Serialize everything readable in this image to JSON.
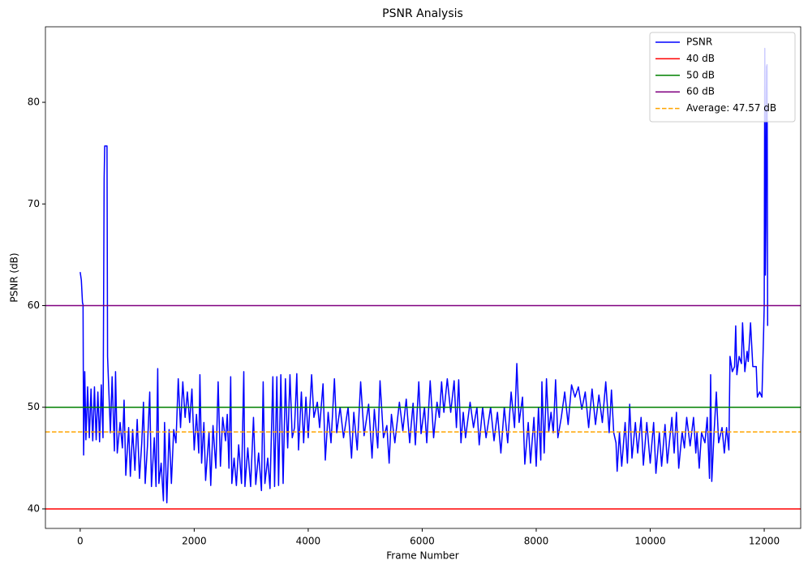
{
  "chart_data": {
    "type": "line",
    "title": "PSNR Analysis",
    "x_label": "Frame Number",
    "y_label": "PSNR (dB)",
    "xlim": [
      -610,
      12640
    ],
    "ylim": [
      38.08,
      87.43
    ],
    "xticks": [
      0,
      2000,
      4000,
      6000,
      8000,
      10000,
      12000
    ],
    "yticks": [
      40,
      50,
      60,
      70,
      80
    ],
    "legend": "upper right",
    "series": [
      {
        "name": "PSNR",
        "color": "#0000ff",
        "x": [
          0,
          20,
          40,
          50,
          60,
          80,
          100,
          130,
          160,
          190,
          220,
          250,
          280,
          310,
          340,
          370,
          400,
          420,
          430,
          470,
          480,
          500,
          530,
          560,
          600,
          620,
          650,
          700,
          740,
          770,
          800,
          850,
          880,
          920,
          960,
          1000,
          1040,
          1080,
          1110,
          1140,
          1180,
          1220,
          1250,
          1300,
          1330,
          1360,
          1380,
          1420,
          1460,
          1480,
          1520,
          1560,
          1600,
          1640,
          1680,
          1720,
          1760,
          1800,
          1840,
          1880,
          1920,
          1960,
          2000,
          2040,
          2080,
          2100,
          2130,
          2170,
          2200,
          2260,
          2290,
          2330,
          2380,
          2420,
          2460,
          2500,
          2550,
          2580,
          2610,
          2640,
          2660,
          2700,
          2740,
          2780,
          2830,
          2870,
          2890,
          2940,
          2990,
          3040,
          3080,
          3130,
          3180,
          3210,
          3240,
          3290,
          3330,
          3380,
          3410,
          3450,
          3480,
          3520,
          3560,
          3600,
          3640,
          3680,
          3720,
          3760,
          3800,
          3830,
          3880,
          3920,
          3960,
          4000,
          4060,
          4100,
          4160,
          4200,
          4260,
          4300,
          4350,
          4400,
          4460,
          4500,
          4560,
          4620,
          4700,
          4760,
          4800,
          4860,
          4920,
          4980,
          5060,
          5120,
          5160,
          5220,
          5260,
          5320,
          5380,
          5420,
          5460,
          5520,
          5600,
          5660,
          5720,
          5780,
          5840,
          5880,
          5940,
          5980,
          6040,
          6080,
          6140,
          6200,
          6260,
          6300,
          6340,
          6380,
          6440,
          6500,
          6560,
          6600,
          6640,
          6680,
          6720,
          6760,
          6840,
          6900,
          6960,
          7000,
          7060,
          7120,
          7200,
          7260,
          7320,
          7380,
          7440,
          7500,
          7560,
          7620,
          7660,
          7700,
          7760,
          7800,
          7860,
          7900,
          7960,
          8000,
          8040,
          8080,
          8100,
          8140,
          8180,
          8220,
          8260,
          8300,
          8340,
          8380,
          8440,
          8500,
          8560,
          8620,
          8680,
          8740,
          8800,
          8860,
          8920,
          8980,
          9040,
          9100,
          9160,
          9220,
          9280,
          9320,
          9360,
          9400,
          9420,
          9460,
          9500,
          9560,
          9600,
          9640,
          9680,
          9740,
          9780,
          9840,
          9880,
          9940,
          10000,
          10060,
          10100,
          10160,
          10200,
          10260,
          10300,
          10380,
          10420,
          10460,
          10500,
          10560,
          10600,
          10640,
          10700,
          10760,
          10800,
          10820,
          10860,
          10900,
          10960,
          11000,
          11040,
          11060,
          11080,
          11120,
          11160,
          11200,
          11260,
          11300,
          11340,
          11380,
          11400,
          11440,
          11480,
          11500,
          11520,
          11560,
          11600,
          11620,
          11660,
          11700,
          11720,
          11760,
          11800,
          11860,
          11880,
          11920,
          11960,
          11990,
          12000,
          12010,
          12020,
          12030,
          12040,
          12050,
          12060
        ],
        "values": [
          63.3,
          62.5,
          60.3,
          60.1,
          45.3,
          53.5,
          46.8,
          52,
          47,
          51.8,
          46.7,
          52,
          46.8,
          51.5,
          46.6,
          52.2,
          47,
          72.5,
          75.7,
          75.7,
          55,
          52,
          47.5,
          53,
          45.7,
          53.5,
          45.5,
          48.5,
          46,
          50.7,
          43.3,
          48,
          43.2,
          47.8,
          43.8,
          48.8,
          43,
          46.5,
          50.5,
          42.5,
          46.2,
          51.5,
          42.2,
          47,
          42.2,
          53.8,
          42.5,
          44.5,
          40.8,
          48.5,
          40.6,
          47.8,
          42.5,
          47.8,
          46.5,
          52.8,
          48,
          52.5,
          49,
          51.5,
          48.5,
          51.8,
          45.8,
          49.3,
          45.5,
          53.2,
          44.5,
          48.5,
          42.8,
          47.5,
          42.3,
          48.2,
          44,
          52.5,
          44.2,
          49,
          46.7,
          49.3,
          44,
          53,
          42.5,
          45,
          42.3,
          46.3,
          42.5,
          53.5,
          42.2,
          46,
          42.2,
          49,
          42.4,
          45.5,
          41.8,
          52.5,
          42.5,
          45,
          42,
          53,
          42.2,
          53,
          42.3,
          53.2,
          42.5,
          52.8,
          46,
          53.2,
          47,
          48,
          53.3,
          45.8,
          51.5,
          46.5,
          51,
          47,
          53.2,
          49,
          50.5,
          48,
          52.3,
          44.8,
          49.5,
          46.5,
          52.8,
          47.5,
          50,
          47,
          50,
          45,
          49.5,
          45.8,
          52.5,
          47.2,
          50.3,
          45,
          49.8,
          46,
          52.6,
          47,
          48.2,
          44.5,
          49.3,
          46.5,
          50.5,
          47.7,
          50.8,
          46.5,
          50.4,
          46.3,
          52.5,
          47.4,
          50,
          46.5,
          52.6,
          47,
          50.5,
          49,
          52.5,
          49.5,
          52.8,
          49.5,
          52.6,
          48,
          52.7,
          46.5,
          49.5,
          47,
          50.5,
          48,
          50,
          46.3,
          50,
          47,
          50,
          46.7,
          49.5,
          45.5,
          50,
          46.5,
          51.5,
          48,
          54.3,
          48.5,
          51,
          44.4,
          48.5,
          44.5,
          49,
          44.2,
          50,
          44.8,
          52.5,
          45.5,
          52.8,
          47.6,
          49.5,
          47.5,
          52.7,
          47,
          49,
          51.5,
          48.3,
          52.2,
          51,
          52,
          49.8,
          51.5,
          48,
          51.8,
          48.3,
          51.2,
          48.5,
          52.5,
          47.5,
          51.7,
          47.5,
          46.5,
          43.7,
          47.5,
          44.2,
          48.5,
          44.5,
          50.3,
          45,
          48.5,
          45.5,
          49,
          44.3,
          48.5,
          44.5,
          48.5,
          43.5,
          47.5,
          44.2,
          48.3,
          44.5,
          49,
          45.5,
          49.5,
          44,
          47.6,
          46,
          49,
          46.2,
          49,
          45.5,
          47.5,
          44,
          47.5,
          46.5,
          49,
          43,
          53.2,
          42.7,
          47.5,
          51.5,
          46.5,
          48,
          45.5,
          48,
          45.8,
          55,
          53.5,
          54,
          58,
          53.2,
          55,
          54.3,
          58.3,
          53.5,
          55.5,
          54.5,
          58.3,
          54,
          54,
          51,
          51.5,
          51,
          57.5,
          60,
          85.3,
          63,
          68,
          83.5,
          83.7,
          58
        ]
      }
    ],
    "reference_lines": [
      {
        "name": "40 dB",
        "value": 40,
        "color": "#ff0000",
        "dashed": false
      },
      {
        "name": "50 dB",
        "value": 50,
        "color": "#008000",
        "dashed": false
      },
      {
        "name": "60 dB",
        "value": 60,
        "color": "#800080",
        "dashed": false
      },
      {
        "name": "Average: 47.57 dB",
        "value": 47.57,
        "color": "#ffa500",
        "dashed": true
      }
    ]
  }
}
